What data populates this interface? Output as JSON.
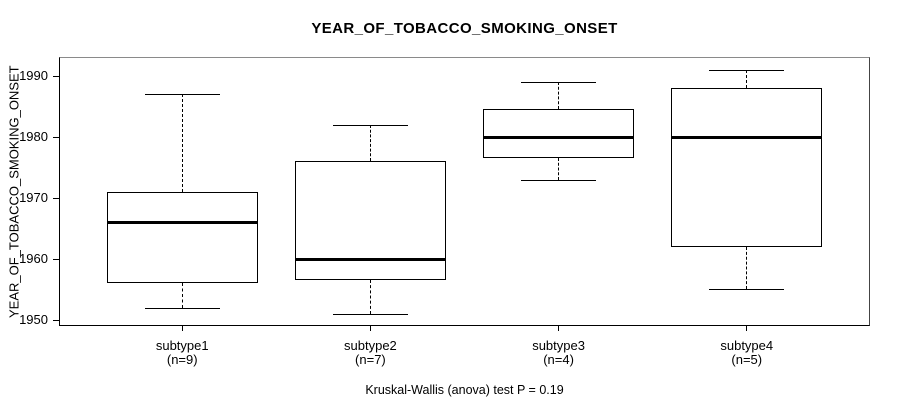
{
  "chart_data": {
    "type": "boxplot",
    "title": "YEAR_OF_TOBACCO_SMOKING_ONSET",
    "ylabel": "YEAR_OF_TOBACCO_SMOKING_ONSET",
    "xlabel": "",
    "annotation": "Kruskal-Wallis (anova) test P = 0.19",
    "y_ticks": [
      1950,
      1960,
      1970,
      1980,
      1990
    ],
    "ylim": [
      1949.0,
      1993.1
    ],
    "xlim": [
      0.345,
      4.655
    ],
    "grid": false,
    "box_width_units": 0.8,
    "groups": [
      {
        "label": "subtype1",
        "n_label": "(n=9)",
        "n": 9,
        "position": 1,
        "min": 1952,
        "q1": 1956,
        "median": 1966,
        "q3": 1971,
        "max": 1987
      },
      {
        "label": "subtype2",
        "n_label": "(n=7)",
        "n": 7,
        "position": 2,
        "min": 1951,
        "q1": 1956.5,
        "median": 1960,
        "q3": 1976,
        "max": 1982
      },
      {
        "label": "subtype3",
        "n_label": "(n=4)",
        "n": 4,
        "position": 3,
        "min": 1973,
        "q1": 1976.5,
        "median": 1980,
        "q3": 1984.5,
        "max": 1989
      },
      {
        "label": "subtype4",
        "n_label": "(n=5)",
        "n": 5,
        "position": 4,
        "min": 1955,
        "q1": 1962,
        "median": 1980,
        "q3": 1988,
        "max": 1991
      }
    ],
    "colors": {
      "line": "#000000",
      "box_fill": "#ffffff",
      "background": "#ffffff",
      "frame_top": "#8a8a8a"
    }
  }
}
